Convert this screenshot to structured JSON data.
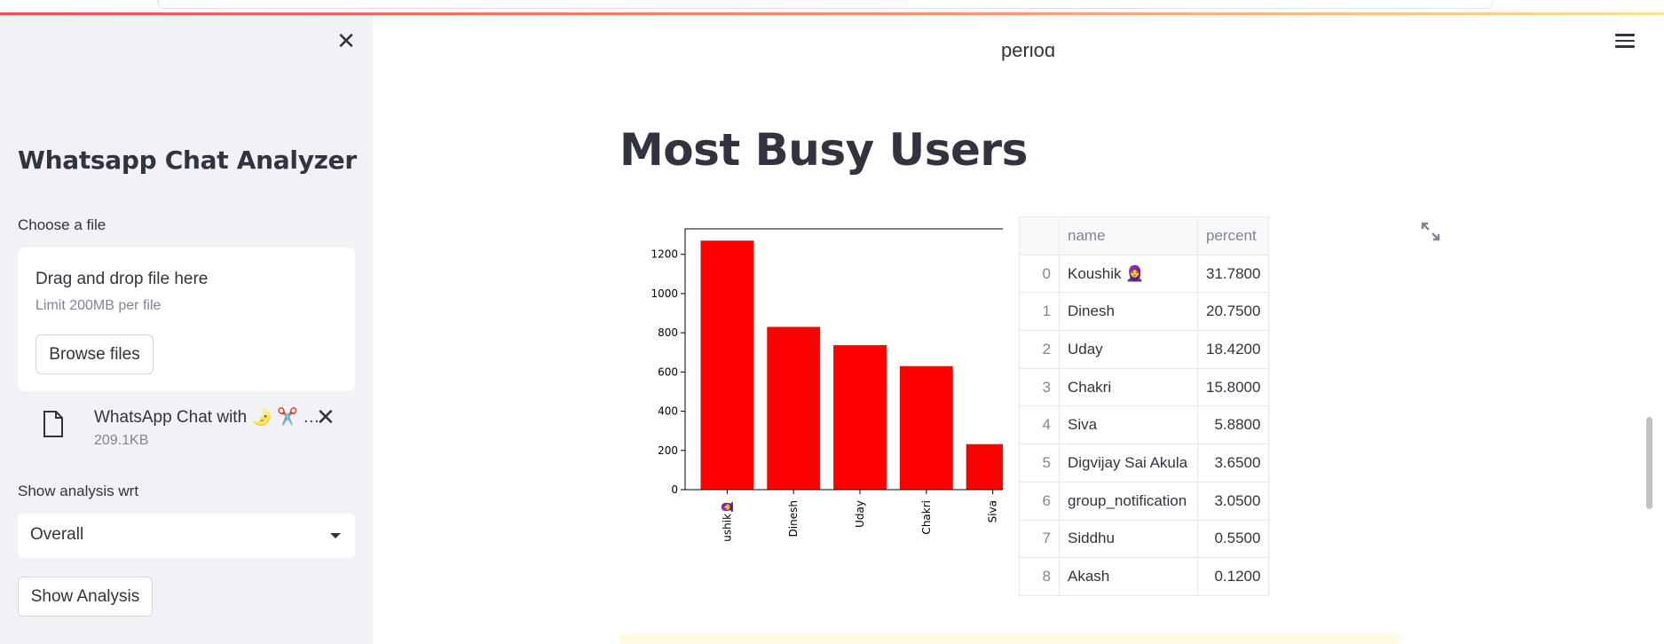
{
  "sidebar": {
    "title": "Whatsapp Chat Analyzer",
    "choose_label": "Choose a file",
    "dropzone_title": "Drag and drop file here",
    "dropzone_limit": "Limit 200MB per file",
    "browse_label": "Browse files",
    "file_name": "WhatsApp Chat with 🌛 ✂️ …",
    "file_size": "209.1KB",
    "analysis_label": "Show analysis wrt",
    "analysis_value": "Overall",
    "show_button": "Show Analysis"
  },
  "main": {
    "partial_heading": "period",
    "title": "Most Busy Users",
    "table": {
      "headers": [
        "name",
        "percent"
      ],
      "rows": [
        {
          "idx": "0",
          "name": "Koushik 🧕",
          "percent": "31.7800"
        },
        {
          "idx": "1",
          "name": "Dinesh",
          "percent": "20.7500"
        },
        {
          "idx": "2",
          "name": "Uday",
          "percent": "18.4200"
        },
        {
          "idx": "3",
          "name": "Chakri",
          "percent": "15.8000"
        },
        {
          "idx": "4",
          "name": "Siva",
          "percent": "5.8800"
        },
        {
          "idx": "5",
          "name": "Digvijay Sai Akula",
          "percent": "3.6500"
        },
        {
          "idx": "6",
          "name": "group_notification",
          "percent": "3.0500"
        },
        {
          "idx": "7",
          "name": "Siddhu",
          "percent": "0.5500"
        },
        {
          "idx": "8",
          "name": "Akash",
          "percent": "0.1200"
        }
      ]
    }
  },
  "chart_data": {
    "type": "bar",
    "categories": [
      "Koushik🧕",
      "Dinesh",
      "Uday",
      "Chakri",
      "Siva"
    ],
    "values": [
      1270,
      830,
      737,
      630,
      232
    ],
    "ylim": [
      0,
      1330
    ],
    "yticks": [
      0,
      200,
      400,
      600,
      800,
      1000,
      1200
    ],
    "color": "#ff0000",
    "title": "",
    "xlabel": "",
    "ylabel": "",
    "grid": false
  },
  "colors": {
    "accent": "#ff4b4b",
    "sidebar_bg": "#f0f2f6",
    "text": "#31333f"
  }
}
